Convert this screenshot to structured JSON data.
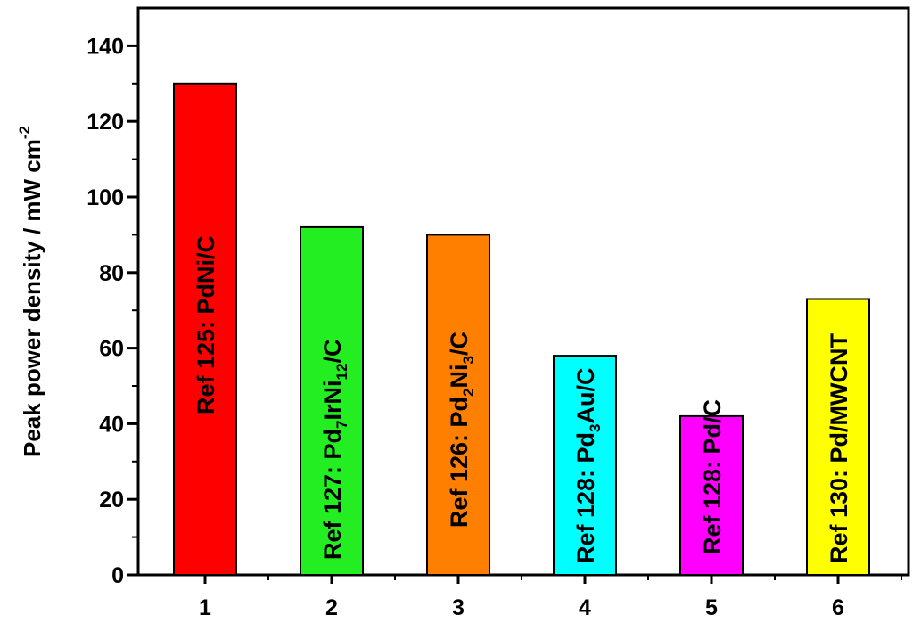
{
  "chart_data": {
    "type": "bar",
    "y_label": [
      "Peak power density / mW cm",
      "-2"
    ],
    "categories": [
      "1",
      "2",
      "3",
      "4",
      "5",
      "6"
    ],
    "values": [
      130,
      92,
      90,
      58,
      42,
      73
    ],
    "colors": [
      "#ff0000",
      "#22ee22",
      "#ff8000",
      "#00ffff",
      "#ff00ff",
      "#ffff00"
    ],
    "bar_labels": [
      [
        "Ref 125: PdNi/C"
      ],
      [
        "Ref 127: Pd",
        "7",
        "IrNi",
        "12",
        "/C"
      ],
      [
        "Ref 126: Pd",
        "2",
        "Ni",
        "3",
        "/C"
      ],
      [
        "Ref 128: Pd",
        "3",
        "Au/C"
      ],
      [
        "Ref 128: Pd/C"
      ],
      [
        "Ref 130: Pd/MWCNT"
      ]
    ],
    "ylim": [
      0,
      150
    ],
    "yticks": [
      0,
      20,
      40,
      60,
      80,
      100,
      120,
      140
    ]
  }
}
